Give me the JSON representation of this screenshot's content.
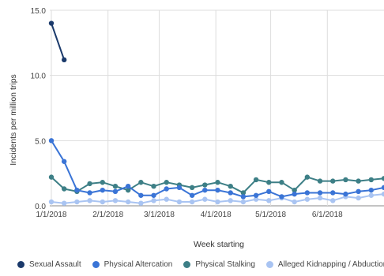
{
  "chart_data": {
    "type": "line",
    "xlabel": "Week starting",
    "ylabel": "Incidents per million trips",
    "ylim": [
      0,
      15
    ],
    "yticks": [
      "0.0",
      "5.0",
      "10.0",
      "15.0"
    ],
    "xticks": [
      "1/1/2018",
      "2/1/2018",
      "3/1/2018",
      "4/1/2018",
      "5/1/2018",
      "6/1/2018"
    ],
    "grid": true,
    "legend_position": "bottom",
    "x": [
      "1/1/2018",
      "1/8/2018",
      "1/15/2018",
      "1/22/2018",
      "1/29/2018",
      "2/5/2018",
      "2/12/2018",
      "2/19/2018",
      "2/26/2018",
      "3/5/2018",
      "3/12/2018",
      "3/19/2018",
      "3/26/2018",
      "4/2/2018",
      "4/9/2018",
      "4/16/2018",
      "4/23/2018",
      "4/30/2018",
      "5/7/2018",
      "5/14/2018",
      "5/21/2018",
      "5/28/2018",
      "6/4/2018",
      "6/11/2018",
      "6/18/2018",
      "6/25/2018",
      "7/2/2018"
    ],
    "series": [
      {
        "name": "Sexual Assault",
        "color": "#1b3a6b",
        "values": [
          14.0,
          11.2,
          null,
          null,
          null,
          null,
          null,
          null,
          null,
          null,
          null,
          null,
          null,
          null,
          null,
          null,
          null,
          null,
          null,
          null,
          null,
          null,
          null,
          null,
          null,
          null,
          null
        ]
      },
      {
        "name": "Physical Altercation",
        "color": "#3a74d6",
        "values": [
          5.0,
          3.4,
          1.2,
          1.0,
          1.2,
          1.1,
          1.5,
          0.8,
          0.8,
          1.3,
          1.4,
          0.8,
          1.2,
          1.2,
          1.0,
          0.7,
          0.8,
          1.1,
          0.7,
          0.9,
          1.0,
          1.0,
          1.0,
          0.9,
          1.1,
          1.2,
          1.4
        ]
      },
      {
        "name": "Physical Stalking",
        "color": "#3d7f86",
        "values": [
          2.2,
          1.3,
          1.1,
          1.7,
          1.8,
          1.5,
          1.2,
          1.8,
          1.5,
          1.8,
          1.6,
          1.4,
          1.6,
          1.8,
          1.5,
          1.0,
          2.0,
          1.8,
          1.8,
          1.2,
          2.2,
          1.9,
          1.9,
          2.0,
          1.9,
          2.0,
          2.1
        ]
      },
      {
        "name": "Alleged Kidnapping / Abduction",
        "color": "#a9c4f2",
        "values": [
          0.3,
          0.2,
          0.3,
          0.4,
          0.3,
          0.4,
          0.3,
          0.2,
          0.4,
          0.5,
          0.3,
          0.3,
          0.5,
          0.3,
          0.4,
          0.3,
          0.5,
          0.4,
          0.6,
          0.3,
          0.5,
          0.6,
          0.4,
          0.7,
          0.6,
          0.8,
          0.9
        ]
      }
    ]
  }
}
